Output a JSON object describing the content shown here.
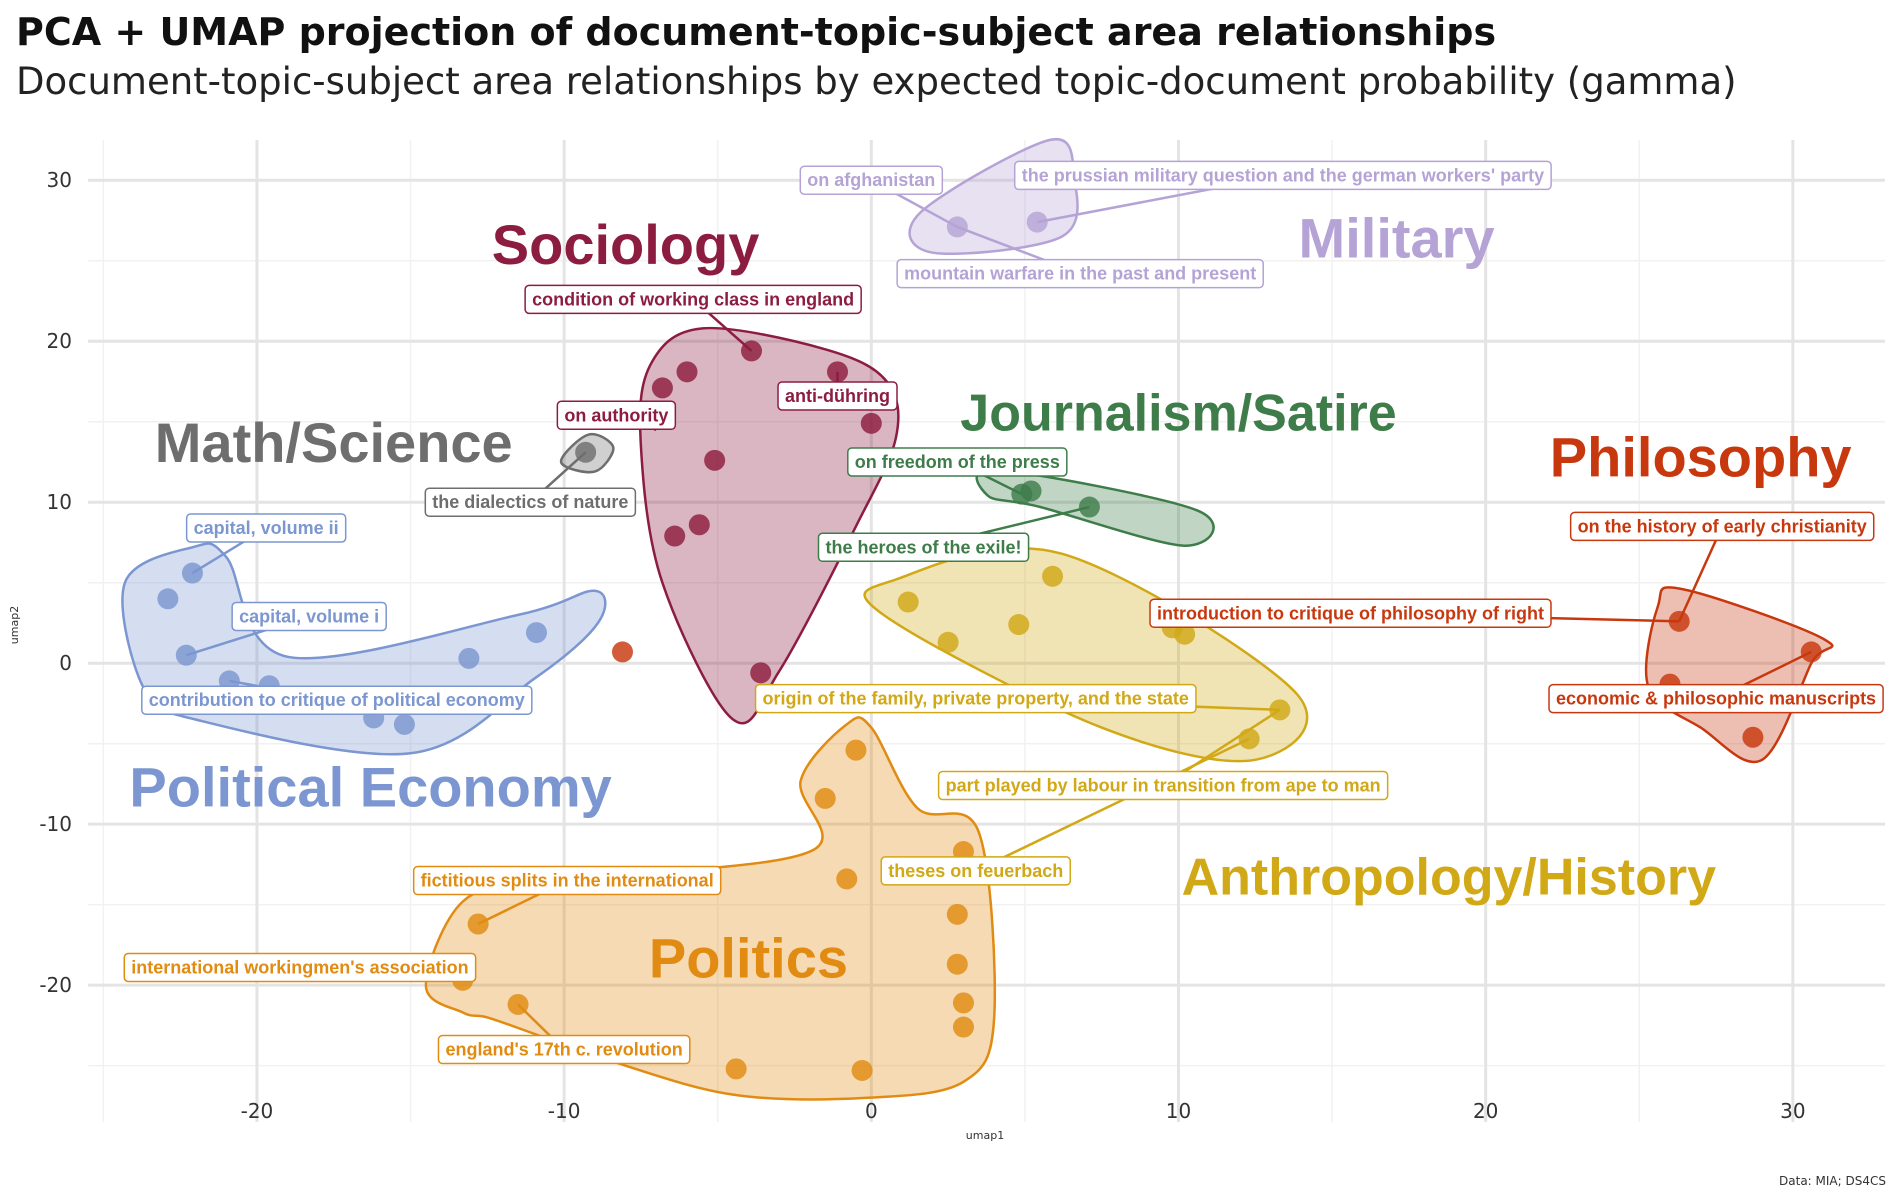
{
  "chart_data": {
    "type": "scatter",
    "title": "PCA + UMAP projection of document-topic-subject area relationships",
    "subtitle": "Document-topic-subject area relationships by expected topic-document probability (gamma)",
    "xlabel": "umap1",
    "ylabel": "umap2",
    "caption": "Data: MIA; DS4CS",
    "xlim": [
      -25.5,
      33
    ],
    "ylim": [
      -28.5,
      32.5
    ],
    "xticks": [
      -20,
      -10,
      0,
      10,
      20,
      30
    ],
    "yticks": [
      -20,
      -10,
      0,
      10,
      20,
      30
    ],
    "grid": true,
    "groups": [
      {
        "name": "Political Economy",
        "color": "#7b96d0",
        "label_pos": [
          -16.3,
          -7.7
        ],
        "label_size": 56,
        "hull": [
          [
            -22.1,
            7.2
          ],
          [
            -21.0,
            6.6
          ],
          [
            -19.0,
            0.4
          ],
          [
            -11.5,
            3.0
          ],
          [
            -9.0,
            4.5
          ],
          [
            -8.9,
            2.5
          ],
          [
            -11.0,
            -1.0
          ],
          [
            -15.0,
            -5.6
          ],
          [
            -22.0,
            -3.5
          ],
          [
            -23.7,
            -1.5
          ],
          [
            -24.3,
            5.0
          ]
        ],
        "points": [
          [
            -22.1,
            5.6
          ],
          [
            -22.9,
            4.0
          ],
          [
            -22.3,
            0.5
          ],
          [
            -20.9,
            -1.1
          ],
          [
            -19.6,
            -1.4
          ],
          [
            -16.2,
            -3.4
          ],
          [
            -15.2,
            -3.8
          ],
          [
            -13.1,
            0.3
          ],
          [
            -10.9,
            1.9
          ]
        ]
      },
      {
        "name": "Math/Science",
        "color": "#6e6e6e",
        "label_pos": [
          -17.5,
          13.7
        ],
        "label_size": 56,
        "hull": [
          [
            -9.2,
            14.2
          ],
          [
            -8.4,
            13.4
          ],
          [
            -9.0,
            11.9
          ],
          [
            -10.1,
            12.5
          ]
        ],
        "points": [
          [
            -9.3,
            13.1
          ]
        ]
      },
      {
        "name": "Sociology",
        "color": "#8c1d40",
        "label_pos": [
          -8.0,
          26.0
        ],
        "label_size": 56,
        "hull": [
          [
            -5.5,
            20.8
          ],
          [
            -1.5,
            19.5
          ],
          [
            0.5,
            17.5
          ],
          [
            0.8,
            14.0
          ],
          [
            -0.5,
            8.5
          ],
          [
            -3.0,
            -0.5
          ],
          [
            -4.5,
            -3.5
          ],
          [
            -6.8,
            5.0
          ],
          [
            -7.5,
            13.5
          ],
          [
            -7.2,
            18.5
          ]
        ],
        "points": [
          [
            -3.9,
            19.4
          ],
          [
            -6.0,
            18.1
          ],
          [
            -6.8,
            17.1
          ],
          [
            -1.1,
            18.1
          ],
          [
            0.0,
            14.9
          ],
          [
            -5.1,
            12.6
          ],
          [
            -5.6,
            8.6
          ],
          [
            -6.4,
            7.9
          ],
          [
            -3.6,
            -0.6
          ]
        ]
      },
      {
        "name": "Military",
        "color": "#b5a3d6",
        "label_pos": [
          17.1,
          26.4
        ],
        "label_size": 56,
        "hull": [
          [
            5.8,
            32.5
          ],
          [
            6.6,
            30.2
          ],
          [
            6.2,
            26.5
          ],
          [
            2.0,
            25.5
          ],
          [
            1.6,
            28.0
          ]
        ],
        "points": [
          [
            2.8,
            27.1
          ],
          [
            5.4,
            27.4
          ]
        ]
      },
      {
        "name": "Journalism/Satire",
        "color": "#3e7d4a",
        "label_pos": [
          10.0,
          15.5
        ],
        "label_size": 52,
        "hull": [
          [
            4.1,
            12.0
          ],
          [
            10.6,
            9.5
          ],
          [
            10.2,
            7.3
          ],
          [
            5.5,
            9.7
          ],
          [
            3.8,
            10.4
          ]
        ],
        "points": [
          [
            4.9,
            10.5
          ],
          [
            5.2,
            10.7
          ],
          [
            7.1,
            9.7
          ]
        ]
      },
      {
        "name": "Philosophy",
        "color": "#c8380f",
        "label_pos": [
          27.0,
          12.8
        ],
        "label_size": 56,
        "hull": [
          [
            26.4,
            4.6
          ],
          [
            31.0,
            1.5
          ],
          [
            30.6,
            0.0
          ],
          [
            29.0,
            -6.0
          ],
          [
            27.0,
            -4.0
          ],
          [
            25.3,
            -1.5
          ],
          [
            25.6,
            3.5
          ]
        ],
        "points": [
          [
            26.3,
            2.6
          ],
          [
            30.6,
            0.7
          ],
          [
            26.0,
            -1.3
          ],
          [
            28.7,
            -4.6
          ],
          [
            -8.1,
            0.7
          ]
        ]
      },
      {
        "name": "Anthropology/History",
        "color": "#d1a816",
        "label_pos": [
          18.8,
          -13.3
        ],
        "label_size": 52,
        "hull": [
          [
            0.8,
            5.2
          ],
          [
            6.2,
            6.8
          ],
          [
            13.8,
            -1.8
          ],
          [
            12.5,
            -6.0
          ],
          [
            7.5,
            -4.0
          ],
          [
            0.4,
            3.0
          ]
        ],
        "points": [
          [
            1.2,
            3.8
          ],
          [
            2.5,
            1.3
          ],
          [
            4.8,
            2.4
          ],
          [
            5.9,
            5.4
          ],
          [
            9.8,
            2.2
          ],
          [
            10.2,
            1.8
          ],
          [
            13.3,
            -2.9
          ],
          [
            12.3,
            -4.7
          ]
        ]
      },
      {
        "name": "Politics",
        "color": "#e18b12",
        "label_pos": [
          -4.0,
          -18.3
        ],
        "label_size": 56,
        "hull": [
          [
            -0.8,
            -3.8
          ],
          [
            -2.3,
            -7.3
          ],
          [
            -1.8,
            -11.5
          ],
          [
            -6.7,
            -13.0
          ],
          [
            -10.8,
            -13.5
          ],
          [
            -13.3,
            -14.8
          ],
          [
            -14.5,
            -20.0
          ],
          [
            -13.3,
            -21.7
          ],
          [
            -12.5,
            -22.0
          ],
          [
            -11.0,
            -23.0
          ],
          [
            -8.5,
            -24.7
          ],
          [
            -4.5,
            -26.8
          ],
          [
            -0.2,
            -27.0
          ],
          [
            3.0,
            -26.0
          ],
          [
            4.0,
            -22.0
          ],
          [
            3.5,
            -10.5
          ],
          [
            1.5,
            -9.0
          ],
          [
            0.0,
            -4.0
          ]
        ],
        "points": [
          [
            -0.5,
            -5.4
          ],
          [
            -1.5,
            -8.4
          ],
          [
            -0.8,
            -13.4
          ],
          [
            3.0,
            -11.7
          ],
          [
            2.8,
            -15.6
          ],
          [
            2.8,
            -18.7
          ],
          [
            3.0,
            -21.1
          ],
          [
            3.0,
            -22.6
          ],
          [
            -0.3,
            -25.3
          ],
          [
            -4.4,
            -25.2
          ],
          [
            -11.5,
            -21.2
          ],
          [
            -13.3,
            -19.7
          ],
          [
            -12.8,
            -16.2
          ]
        ]
      }
    ],
    "annotations": [
      {
        "text": "capital, volume ii",
        "group": 0,
        "pos": [
          -19.7,
          8.4
        ],
        "target": [
          -22.1,
          5.6
        ]
      },
      {
        "text": "capital, volume i",
        "group": 0,
        "pos": [
          -18.3,
          2.9
        ],
        "target": [
          -22.3,
          0.5
        ]
      },
      {
        "text": "contribution to critique of political economy",
        "group": 0,
        "pos": [
          -17.4,
          -2.3
        ],
        "target": [
          -20.9,
          -1.1
        ]
      },
      {
        "text": "the dialectics of nature",
        "group": 1,
        "pos": [
          -11.1,
          10.0
        ],
        "target": [
          -9.3,
          13.1
        ]
      },
      {
        "text": "condition of working class in england",
        "group": 2,
        "pos": [
          -5.8,
          22.6
        ],
        "target": [
          -3.9,
          19.4
        ]
      },
      {
        "text": "on authority",
        "group": 2,
        "pos": [
          -8.3,
          15.4
        ],
        "target": [
          -7.0,
          14.5
        ]
      },
      {
        "text": "anti-dühring",
        "group": 2,
        "pos": [
          -1.1,
          16.6
        ],
        "target": [
          -1.1,
          18.1
        ]
      },
      {
        "text": "on afghanistan",
        "group": 3,
        "pos": [
          0.0,
          30.0
        ],
        "target": [
          2.8,
          27.1
        ]
      },
      {
        "text": "the prussian military question and the german workers' party",
        "group": 3,
        "pos": [
          13.4,
          30.3
        ],
        "target": [
          5.4,
          27.4
        ]
      },
      {
        "text": "mountain warfare in the past and present",
        "group": 3,
        "pos": [
          6.8,
          24.2
        ],
        "target": [
          2.8,
          27.1
        ]
      },
      {
        "text": "on freedom of the press",
        "group": 4,
        "pos": [
          2.8,
          12.5
        ],
        "target": [
          4.9,
          10.5
        ]
      },
      {
        "text": "the heroes of the exile!",
        "group": 4,
        "pos": [
          1.7,
          7.2
        ],
        "target": [
          7.1,
          9.7
        ]
      },
      {
        "text": "on the history of early christianity",
        "group": 5,
        "pos": [
          27.7,
          8.5
        ],
        "target": [
          26.3,
          2.6
        ]
      },
      {
        "text": "introduction to critique of philosophy of right",
        "group": 5,
        "pos": [
          15.6,
          3.1
        ],
        "target": [
          26.3,
          2.6
        ]
      },
      {
        "text": "economic & philosophic manuscripts",
        "group": 5,
        "pos": [
          27.5,
          -2.2
        ],
        "target": [
          30.6,
          0.7
        ]
      },
      {
        "text": "origin of the family, private property, and the state",
        "group": 6,
        "pos": [
          3.4,
          -2.2
        ],
        "target": [
          13.3,
          -2.9
        ]
      },
      {
        "text": "part played by labour in transition from ape to man",
        "group": 6,
        "pos": [
          9.5,
          -7.6
        ],
        "target": [
          13.3,
          -2.9
        ]
      },
      {
        "text": "theses on feuerbach",
        "group": 6,
        "pos": [
          3.4,
          -12.9
        ],
        "target": [
          12.3,
          -4.7
        ]
      },
      {
        "text": "fictitious splits in the international",
        "group": 7,
        "pos": [
          -9.9,
          -13.5
        ],
        "target": [
          -12.8,
          -16.2
        ]
      },
      {
        "text": "international workingmen's association",
        "group": 7,
        "pos": [
          -18.6,
          -18.9
        ],
        "target": [
          -13.3,
          -19.7
        ]
      },
      {
        "text": "england's 17th c. revolution",
        "group": 7,
        "pos": [
          -10.0,
          -24.0
        ],
        "target": [
          -11.5,
          -21.2
        ]
      }
    ]
  }
}
